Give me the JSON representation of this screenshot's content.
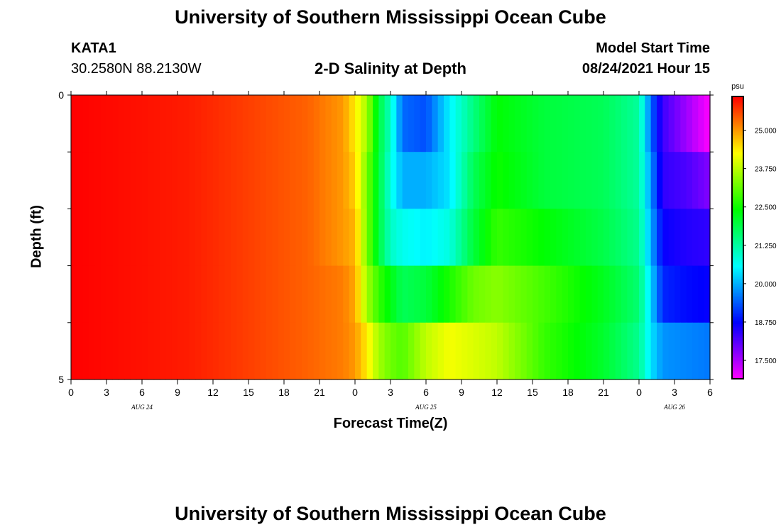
{
  "page": {
    "title_top": "University of Southern Mississippi Ocean Cube",
    "title_bottom": "University of Southern Mississippi Ocean Cube",
    "station_id": "KATA1",
    "station_coords": "30.2580N  88.2130W",
    "model_start_label": "Model Start Time",
    "model_start_value": "08/24/2021 Hour 15"
  },
  "chart_data": {
    "type": "heatmap",
    "title": "2-D Salinity at Depth",
    "xlabel": "Forecast Time(Z)",
    "ylabel": "Depth (ft)",
    "x_ticks": [
      "0",
      "3",
      "6",
      "9",
      "12",
      "15",
      "18",
      "21",
      "0",
      "3",
      "6",
      "9",
      "12",
      "15",
      "18",
      "21",
      "0",
      "3",
      "6"
    ],
    "date_labels": [
      {
        "text": "AUG  24",
        "at_hour": 6
      },
      {
        "text": "AUG  25",
        "at_hour": 30
      },
      {
        "text": "AUG  26",
        "at_hour": 51
      }
    ],
    "x_range_hours": [
      0,
      54
    ],
    "y_ticks": [
      "0",
      "5"
    ],
    "y_range_ft": [
      0,
      5
    ],
    "depth_layers": 5,
    "colorbar": {
      "unit": "psu",
      "range": [
        16.9,
        26.1
      ],
      "tick_values": [
        25.0,
        23.75,
        22.5,
        21.25,
        20.0,
        18.75,
        17.5
      ],
      "tick_labels": [
        "25.000",
        "23.750",
        "22.500",
        "21.250",
        "20.000",
        "18.750",
        "17.500"
      ],
      "colors": [
        "#ff00ff",
        "#8000ff",
        "#0000ff",
        "#0080ff",
        "#00ffff",
        "#00ff80",
        "#00ff00",
        "#80ff00",
        "#ffff00",
        "#ff8000",
        "#ff0000"
      ]
    },
    "salinity_profiles_by_hour": [
      {
        "hour": 0,
        "values": [
          26.1,
          26.1,
          26.1,
          26.1,
          26.1
        ]
      },
      {
        "hour": 10,
        "values": [
          25.9,
          25.9,
          25.9,
          25.9,
          25.9
        ]
      },
      {
        "hour": 20,
        "values": [
          25.4,
          25.4,
          25.4,
          25.4,
          25.4
        ]
      },
      {
        "hour": 23,
        "values": [
          25.0,
          25.0,
          25.0,
          25.2,
          25.2
        ]
      },
      {
        "hour": 24,
        "values": [
          24.4,
          24.6,
          24.8,
          24.9,
          25.0
        ]
      },
      {
        "hour": 25,
        "values": [
          23.6,
          23.3,
          23.3,
          23.6,
          24.4
        ]
      },
      {
        "hour": 26,
        "values": [
          22.0,
          22.0,
          22.0,
          22.8,
          23.6
        ]
      },
      {
        "hour": 27,
        "values": [
          21.0,
          20.8,
          21.0,
          22.3,
          23.2
        ]
      },
      {
        "hour": 28,
        "values": [
          19.5,
          20.0,
          20.7,
          21.8,
          23.0
        ]
      },
      {
        "hour": 30,
        "values": [
          19.3,
          20.0,
          20.5,
          22.0,
          23.8
        ]
      },
      {
        "hour": 32,
        "values": [
          20.5,
          20.4,
          20.8,
          22.6,
          24.2
        ]
      },
      {
        "hour": 34,
        "values": [
          21.5,
          21.8,
          22.0,
          23.2,
          24.0
        ]
      },
      {
        "hour": 36,
        "values": [
          22.4,
          22.5,
          22.8,
          23.4,
          23.8
        ]
      },
      {
        "hour": 40,
        "values": [
          22.0,
          22.0,
          22.4,
          22.9,
          22.8
        ]
      },
      {
        "hour": 45,
        "values": [
          21.8,
          21.8,
          21.9,
          22.2,
          22.1
        ]
      },
      {
        "hour": 48,
        "values": [
          21.3,
          21.3,
          21.4,
          21.6,
          21.4
        ]
      },
      {
        "hour": 49,
        "values": [
          19.5,
          19.8,
          20.0,
          20.3,
          20.4
        ]
      },
      {
        "hour": 50,
        "values": [
          18.3,
          18.4,
          18.7,
          19.0,
          19.8
        ]
      },
      {
        "hour": 52,
        "values": [
          17.6,
          18.2,
          18.5,
          18.8,
          19.7
        ]
      },
      {
        "hour": 54,
        "values": [
          16.9,
          17.8,
          18.4,
          18.7,
          19.6
        ]
      }
    ]
  }
}
